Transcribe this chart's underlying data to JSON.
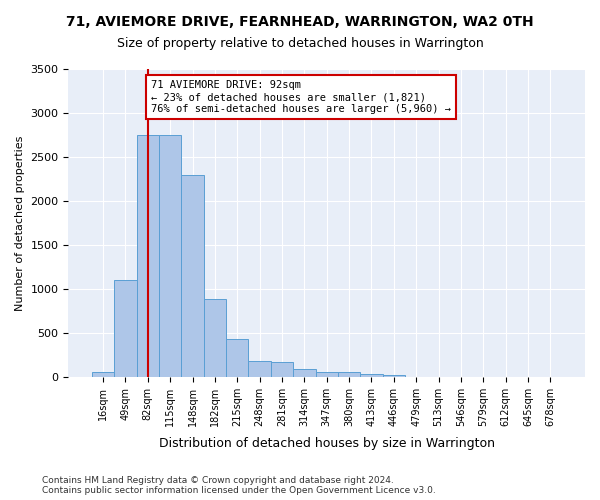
{
  "title": "71, AVIEMORE DRIVE, FEARNHEAD, WARRINGTON, WA2 0TH",
  "subtitle": "Size of property relative to detached houses in Warrington",
  "xlabel": "Distribution of detached houses by size in Warrington",
  "ylabel": "Number of detached properties",
  "bar_values": [
    50,
    1100,
    2750,
    2750,
    2300,
    880,
    430,
    175,
    165,
    90,
    60,
    50,
    35,
    25,
    0,
    0,
    0,
    0,
    0,
    0,
    0
  ],
  "bar_labels": [
    "16sqm",
    "49sqm",
    "82sqm",
    "115sqm",
    "148sqm",
    "182sqm",
    "215sqm",
    "248sqm",
    "281sqm",
    "314sqm",
    "347sqm",
    "380sqm",
    "413sqm",
    "446sqm",
    "479sqm",
    "513sqm",
    "546sqm",
    "579sqm",
    "612sqm",
    "645sqm",
    "678sqm"
  ],
  "bar_color": "#aec6e8",
  "bar_edge_color": "#5a9fd4",
  "vline_x": 2,
  "vline_color": "#cc0000",
  "annotation_text": "71 AVIEMORE DRIVE: 92sqm\n← 23% of detached houses are smaller (1,821)\n76% of semi-detached houses are larger (5,960) →",
  "annotation_box_color": "#ffffff",
  "annotation_box_edge": "#cc0000",
  "ylim": [
    0,
    3500
  ],
  "yticks": [
    0,
    500,
    1000,
    1500,
    2000,
    2500,
    3000,
    3500
  ],
  "bg_color": "#e8eef8",
  "grid_color": "#ffffff",
  "footer": "Contains HM Land Registry data © Crown copyright and database right 2024.\nContains public sector information licensed under the Open Government Licence v3.0."
}
